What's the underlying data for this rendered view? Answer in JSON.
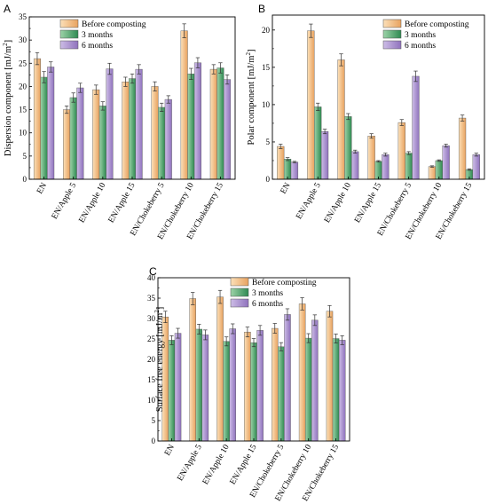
{
  "figure": {
    "legend": [
      "Before composting",
      "3 months",
      "6 months"
    ],
    "series_colors": [
      "#f0b878",
      "#4faa72",
      "#a98fcd"
    ],
    "charts": [
      {
        "letter": "A",
        "ylabel": "Dispersion component [mJ/m",
        "ylabel_sup": "2",
        "ylabel_end": "]"
      },
      {
        "letter": "B",
        "ylabel": "Polar component [mJ/m",
        "ylabel_sup": "2",
        "ylabel_end": "]"
      },
      {
        "letter": "C",
        "ylabel": "Surface free energy [mJ/m",
        "ylabel_sup": "2",
        "ylabel_end": "]"
      }
    ]
  },
  "chart_data": [
    {
      "type": "bar",
      "categories": [
        "EN",
        "EN/Apple 5",
        "EN/Apple 10",
        "EN/Apple 15",
        "EN/Chokeberry 5",
        "EN/Chokeberry 10",
        "EN/Chokeberry 15"
      ],
      "series": [
        {
          "name": "Before composting",
          "values": [
            26.0,
            15.0,
            19.3,
            21.0,
            20.0,
            32.0,
            23.7
          ],
          "errors": [
            1.3,
            0.8,
            1.0,
            1.0,
            1.0,
            1.5,
            1.0
          ]
        },
        {
          "name": "3 months",
          "values": [
            22.0,
            17.6,
            15.8,
            21.7,
            15.5,
            22.7,
            24.0
          ],
          "errors": [
            1.2,
            1.0,
            0.9,
            1.0,
            0.9,
            1.2,
            1.1
          ]
        },
        {
          "name": "6 months",
          "values": [
            24.2,
            19.7,
            23.8,
            23.7,
            17.2,
            25.1,
            21.5
          ],
          "errors": [
            1.1,
            1.0,
            1.2,
            1.0,
            0.8,
            1.1,
            1.0
          ]
        }
      ],
      "ylim": [
        0,
        35
      ],
      "yticks": [
        0,
        5,
        10,
        15,
        20,
        25,
        30,
        35
      ],
      "ylabel": "Dispersion component [mJ/m2]",
      "legend_position": "top-right"
    },
    {
      "type": "bar",
      "categories": [
        "EN",
        "EN/Apple 5",
        "EN/Apple 10",
        "EN/Apple 15",
        "EN/Chokeberry 5",
        "EN/Chokeberry 10",
        "EN/Chokeberry 15"
      ],
      "series": [
        {
          "name": "Before composting",
          "values": [
            4.4,
            19.9,
            16.0,
            5.8,
            7.6,
            1.7,
            8.2
          ],
          "errors": [
            0.3,
            0.9,
            0.8,
            0.3,
            0.4,
            0.1,
            0.4
          ]
        },
        {
          "name": "3 months",
          "values": [
            2.7,
            9.7,
            8.4,
            2.4,
            3.5,
            2.5,
            1.3
          ],
          "errors": [
            0.2,
            0.5,
            0.4,
            0.1,
            0.2,
            0.1,
            0.1
          ]
        },
        {
          "name": "6 months",
          "values": [
            2.3,
            6.4,
            3.7,
            3.3,
            13.8,
            4.5,
            3.3
          ],
          "errors": [
            0.1,
            0.3,
            0.2,
            0.2,
            0.7,
            0.2,
            0.2
          ]
        }
      ],
      "ylim": [
        0,
        22
      ],
      "yticks": [
        0,
        5,
        10,
        15,
        20
      ],
      "ylabel": "Polar component [mJ/m2]",
      "legend_position": "top-right"
    },
    {
      "type": "bar",
      "categories": [
        "EN",
        "EN/Apple 5",
        "EN/Apple 10",
        "EN/Apple 15",
        "EN/Chokeberry 5",
        "EN/Chokeberry 10",
        "EN/Chokeberry 15"
      ],
      "series": [
        {
          "name": "Before composting",
          "values": [
            30.4,
            34.9,
            35.3,
            26.7,
            27.6,
            33.6,
            31.8
          ],
          "errors": [
            1.4,
            1.5,
            1.6,
            1.2,
            1.2,
            1.5,
            1.4
          ]
        },
        {
          "name": "3 months",
          "values": [
            24.7,
            27.4,
            24.4,
            24.1,
            23.1,
            25.2,
            25.1
          ],
          "errors": [
            1.1,
            1.2,
            1.1,
            1.0,
            1.0,
            1.1,
            1.1
          ]
        },
        {
          "name": "6 months",
          "values": [
            26.4,
            26.0,
            27.5,
            27.1,
            31.0,
            29.6,
            24.7
          ],
          "errors": [
            1.2,
            1.2,
            1.2,
            1.2,
            1.4,
            1.3,
            1.1
          ]
        }
      ],
      "ylim": [
        0,
        40
      ],
      "yticks": [
        0,
        5,
        10,
        15,
        20,
        25,
        30,
        35,
        40
      ],
      "ylabel": "Surface free energy [mJ/m2]",
      "legend_position": "top-left"
    }
  ]
}
